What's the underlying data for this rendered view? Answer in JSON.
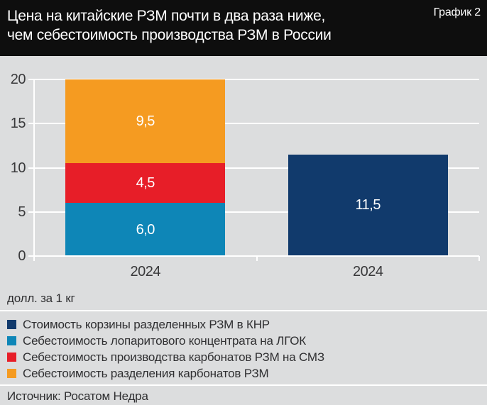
{
  "header": {
    "title_line1": "Цена на китайские РЗМ почти в два раза ниже,",
    "title_line2": "чем себестоимость производства РЗМ в России",
    "corner_label": "График 2"
  },
  "chart_data": {
    "type": "bar",
    "variant": "stacked-vertical",
    "title": "Цена на китайские РЗМ почти в два раза ниже, чем себестоимость производства РЗМ в России",
    "unit_label": "долл. за 1 кг",
    "y_axis": {
      "min": 0,
      "max": 20,
      "ticks": [
        0,
        5,
        10,
        15,
        20
      ]
    },
    "grid": true,
    "legend_position": "bottom",
    "categories": [
      "2024",
      "2024"
    ],
    "bars": [
      {
        "category": "2024",
        "segments": [
          {
            "key": "lgok-concentrate",
            "name": "Себестоимость лопаритового концентрата на ЛГОК",
            "value": 6.0,
            "label": "6,0",
            "color": "#0e86b7"
          },
          {
            "key": "smz-carbonates",
            "name": "Себестоимость производства карбонатов РЗМ на СМЗ",
            "value": 4.5,
            "label": "4,5",
            "color": "#e71e28"
          },
          {
            "key": "carbonate-separation",
            "name": "Себестоимость разделения карбонатов РЗМ",
            "value": 9.5,
            "label": "9,5",
            "color": "#f59b21"
          }
        ]
      },
      {
        "category": "2024",
        "segments": [
          {
            "key": "china-basket",
            "name": "Стоимость корзины разделенных РЗМ в КНР",
            "value": 11.5,
            "label": "11,5",
            "color": "#113a6c"
          }
        ]
      }
    ],
    "legend": [
      {
        "label": "Стоимость корзины разделенных РЗМ в КНР",
        "color": "#113a6c"
      },
      {
        "label": "Себестоимость лопаритового концентрата на ЛГОК",
        "color": "#0e86b7"
      },
      {
        "label": "Себестоимость производства карбонатов РЗМ на СМЗ",
        "color": "#e71e28"
      },
      {
        "label": "Себестоимость разделения карбонатов РЗМ",
        "color": "#f59b21"
      }
    ]
  },
  "footer": {
    "source": "Источник: Росатом Недра"
  },
  "colors": {
    "header_bg": "#0e0e0e",
    "page_bg": "#dcddde",
    "grid": "#ffffff",
    "axis_text": "#39393b",
    "legend_text": "#2f2f31",
    "value_text": "#ffffff"
  }
}
